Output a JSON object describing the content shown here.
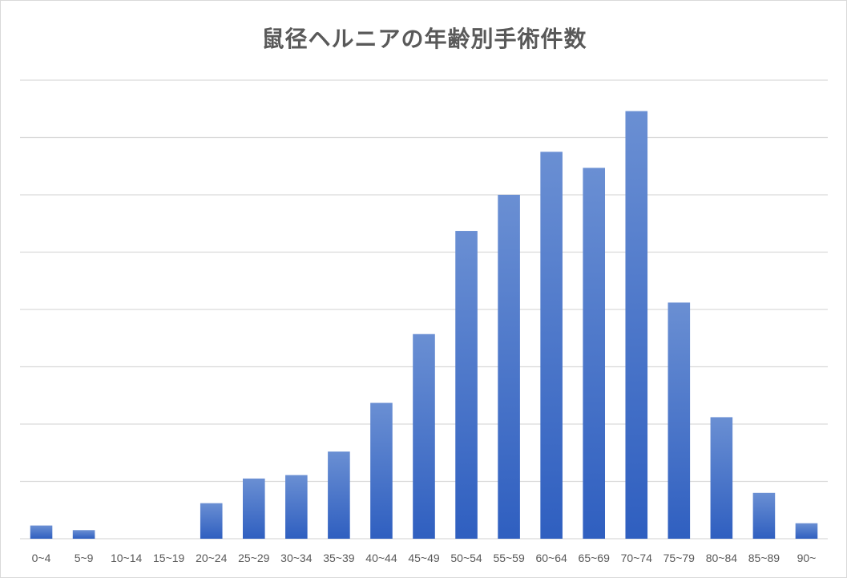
{
  "chart_data": {
    "type": "bar",
    "title": "鼠径ヘルニアの年齢別手術件数",
    "xlabel": "",
    "ylabel": "",
    "categories": [
      "0~4",
      "5~9",
      "10~14",
      "15~19",
      "20~24",
      "25~29",
      "30~34",
      "35~39",
      "40~44",
      "45~49",
      "50~54",
      "55~59",
      "60~64",
      "65~69",
      "70~74",
      "75~79",
      "80~84",
      "85~89",
      "90~"
    ],
    "series": [
      {
        "values": [
          2.3,
          1.5,
          0,
          0,
          6.2,
          10.5,
          11.1,
          15.2,
          23.7,
          35.7,
          53.7,
          60.0,
          67.5,
          64.7,
          74.6,
          41.2,
          21.2,
          8.0,
          2.7
        ]
      }
    ],
    "ylim": [
      0,
      80
    ],
    "y_gridlines": 8,
    "grid": true,
    "y_tick_labels_shown": false,
    "legend": "none",
    "bar_color": "#4472C4",
    "bar_color_light": "#6A8FD3",
    "bar_color_dark": "#2F5FC0",
    "grid_color": "#d9d9d9",
    "text_color": "#595959"
  }
}
